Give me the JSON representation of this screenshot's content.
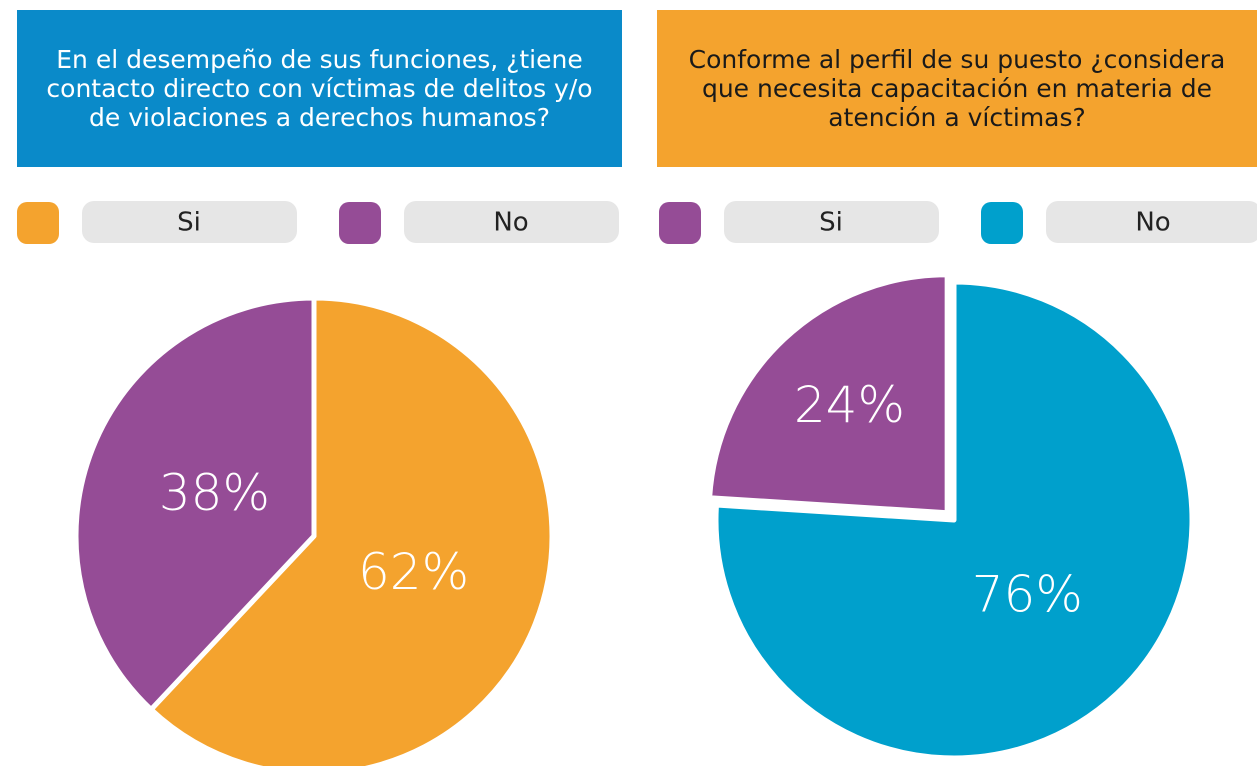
{
  "chart_data": [
    {
      "type": "pie",
      "title": "En el desempeño de sus funciones, ¿tiene contacto directo con víctimas de delitos y/o de violaciones a derechos humanos?",
      "categories": [
        "Si",
        "No"
      ],
      "values": [
        62,
        38
      ],
      "value_labels": [
        "62%",
        "38%"
      ],
      "colors": [
        "#f4a32e",
        "#954c96"
      ],
      "title_color": "#0a8ac9"
    },
    {
      "type": "pie",
      "title": "Conforme al perfil de su puesto ¿considera que necesita capacitación en materia de atención a víctimas?",
      "categories": [
        "Si",
        "No"
      ],
      "values": [
        24,
        76
      ],
      "value_labels": [
        "24%",
        "76%"
      ],
      "colors": [
        "#954c96",
        "#00a0cc"
      ],
      "title_color": "#f4a32e"
    }
  ]
}
